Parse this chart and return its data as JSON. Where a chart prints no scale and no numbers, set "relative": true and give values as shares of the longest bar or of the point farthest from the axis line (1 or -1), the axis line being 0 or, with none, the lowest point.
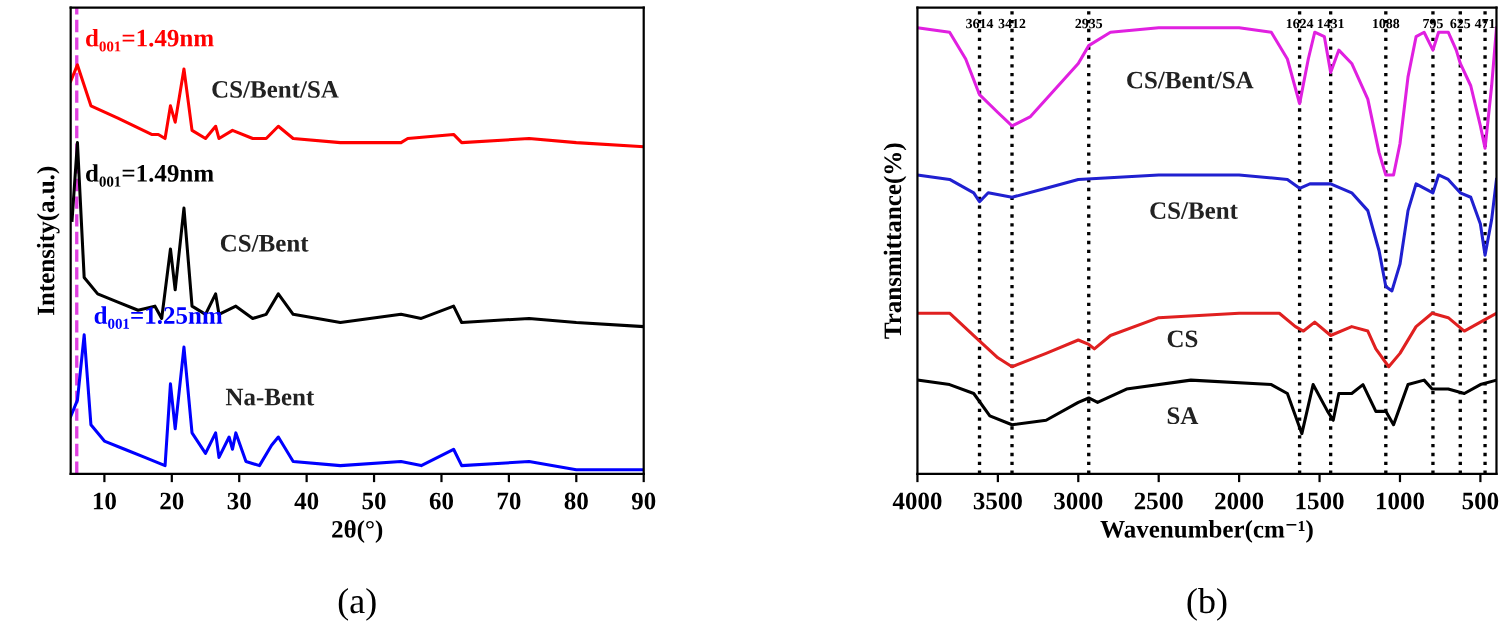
{
  "chart_data": [
    {
      "type": "line",
      "relative": true,
      "xlabel": "2θ(°)",
      "ylabel": "Intensity(a.u.)",
      "xlim": [
        5,
        90
      ],
      "xticks": [
        10,
        20,
        30,
        40,
        50,
        60,
        70,
        80,
        90
      ],
      "grid": false,
      "legend": false,
      "marker": "none",
      "line_style": "solid",
      "annotations": [
        "d₀₀₁=1.49nm",
        "d₀₀₁=1.49nm",
        "d₀₀₁=1.25nm",
        "(a)"
      ],
      "ref_lines": [
        {
          "axis": "x",
          "value": 5.9,
          "color": "#e040e0",
          "line_style": "dashed"
        }
      ],
      "series": [
        {
          "name": "CS/Bent/SA",
          "color": "#ff0000",
          "x": [
            5,
            6,
            8,
            12,
            17,
            18,
            19,
            19.8,
            20.5,
            21.8,
            23,
            25,
            26.5,
            27,
            29,
            32,
            34,
            35.8,
            38,
            45,
            54,
            55,
            61.8,
            63,
            73,
            80,
            90
          ],
          "values": [
            0.96,
            1.0,
            0.9,
            0.87,
            0.83,
            0.83,
            0.82,
            0.9,
            0.86,
            0.99,
            0.84,
            0.82,
            0.85,
            0.82,
            0.84,
            0.82,
            0.82,
            0.85,
            0.82,
            0.81,
            0.81,
            0.82,
            0.83,
            0.81,
            0.82,
            0.81,
            0.8
          ]
        },
        {
          "name": "CS/Bent",
          "color": "#000000",
          "x": [
            5.2,
            6,
            7,
            9,
            12,
            15,
            17.5,
            18.5,
            19.8,
            20.5,
            21.8,
            23,
            25,
            26.5,
            27,
            29.5,
            32,
            34,
            35.8,
            38,
            45,
            54,
            57,
            61.8,
            63,
            73,
            80,
            90
          ],
          "values": [
            0.62,
            0.81,
            0.48,
            0.44,
            0.42,
            0.4,
            0.41,
            0.38,
            0.55,
            0.45,
            0.65,
            0.41,
            0.39,
            0.44,
            0.39,
            0.41,
            0.38,
            0.39,
            0.44,
            0.39,
            0.37,
            0.39,
            0.38,
            0.41,
            0.37,
            0.38,
            0.37,
            0.36
          ]
        },
        {
          "name": "Na-Bent",
          "color": "#0000ff",
          "x": [
            5,
            6,
            7,
            8,
            10,
            13,
            16,
            19,
            19.8,
            20.5,
            21.8,
            23,
            25,
            26.5,
            27,
            28.5,
            29,
            29.5,
            31,
            33,
            34.8,
            35.8,
            38,
            45,
            54,
            57,
            61.8,
            63,
            73,
            80,
            90
          ],
          "values": [
            0.14,
            0.18,
            0.34,
            0.12,
            0.08,
            0.06,
            0.04,
            0.02,
            0.22,
            0.11,
            0.31,
            0.1,
            0.05,
            0.1,
            0.04,
            0.09,
            0.06,
            0.1,
            0.03,
            0.02,
            0.07,
            0.09,
            0.03,
            0.02,
            0.03,
            0.02,
            0.06,
            0.02,
            0.03,
            0.01,
            0.01
          ]
        }
      ]
    },
    {
      "type": "line",
      "relative": true,
      "xlabel": "Wavenumber(cm⁻¹)",
      "ylabel": "Transmittance(%)",
      "xlim": [
        4000,
        400
      ],
      "xticks": [
        4000,
        3500,
        3000,
        2500,
        2000,
        1500,
        1000,
        500
      ],
      "grid": false,
      "legend": false,
      "marker": "none",
      "line_style": "solid",
      "annotations": [
        "(b)"
      ],
      "ref_lines": [
        {
          "axis": "x",
          "value": 3614,
          "label": "3614",
          "color": "#000000",
          "line_style": "dotted"
        },
        {
          "axis": "x",
          "value": 3412,
          "label": "3412",
          "color": "#000000",
          "line_style": "dotted"
        },
        {
          "axis": "x",
          "value": 2935,
          "label": "2935",
          "color": "#000000",
          "line_style": "dotted"
        },
        {
          "axis": "x",
          "value": 1624,
          "label": "1624",
          "color": "#000000",
          "line_style": "dotted"
        },
        {
          "axis": "x",
          "value": 1431,
          "label": "1431",
          "color": "#000000",
          "line_style": "dotted"
        },
        {
          "axis": "x",
          "value": 1088,
          "label": "1088",
          "color": "#000000",
          "line_style": "dotted"
        },
        {
          "axis": "x",
          "value": 795,
          "label": "795",
          "color": "#000000",
          "line_style": "dotted"
        },
        {
          "axis": "x",
          "value": 625,
          "label": "625",
          "color": "#000000",
          "line_style": "dotted"
        },
        {
          "axis": "x",
          "value": 471,
          "label": "471",
          "color": "#000000",
          "line_style": "dotted"
        }
      ],
      "series": [
        {
          "name": "CS/Bent/SA",
          "color": "#e020e0",
          "x": [
            4000,
            3800,
            3700,
            3614,
            3500,
            3412,
            3300,
            3150,
            3000,
            2935,
            2800,
            2500,
            2000,
            1800,
            1700,
            1624,
            1570,
            1530,
            1470,
            1431,
            1380,
            1300,
            1200,
            1130,
            1088,
            1040,
            1000,
            950,
            900,
            850,
            795,
            760,
            700,
            650,
            625,
            560,
            500,
            471,
            430,
            400
          ],
          "values": [
            1.0,
            0.99,
            0.93,
            0.85,
            0.81,
            0.78,
            0.8,
            0.86,
            0.92,
            0.96,
            0.99,
            1.0,
            1.0,
            0.99,
            0.93,
            0.83,
            0.93,
            0.99,
            0.98,
            0.9,
            0.95,
            0.92,
            0.84,
            0.72,
            0.67,
            0.67,
            0.74,
            0.89,
            0.98,
            0.99,
            0.95,
            0.99,
            0.99,
            0.95,
            0.92,
            0.87,
            0.78,
            0.73,
            0.87,
            1.0
          ]
        },
        {
          "name": "CS/Bent",
          "color": "#2020d0",
          "x": [
            4000,
            3800,
            3650,
            3614,
            3560,
            3412,
            3200,
            3000,
            2500,
            2000,
            1700,
            1624,
            1560,
            1431,
            1300,
            1200,
            1130,
            1088,
            1050,
            1000,
            950,
            900,
            795,
            760,
            700,
            625,
            560,
            500,
            471,
            430,
            400
          ],
          "values": [
            0.67,
            0.66,
            0.63,
            0.61,
            0.63,
            0.62,
            0.64,
            0.66,
            0.67,
            0.67,
            0.66,
            0.64,
            0.65,
            0.65,
            0.63,
            0.59,
            0.5,
            0.42,
            0.41,
            0.47,
            0.59,
            0.65,
            0.63,
            0.67,
            0.66,
            0.63,
            0.62,
            0.56,
            0.49,
            0.57,
            0.66
          ]
        },
        {
          "name": "CS",
          "color": "#e02020",
          "x": [
            4000,
            3800,
            3650,
            3500,
            3412,
            3200,
            3000,
            2935,
            2900,
            2800,
            2500,
            2000,
            1750,
            1650,
            1600,
            1530,
            1431,
            1300,
            1200,
            1150,
            1070,
            1000,
            900,
            800,
            700,
            600,
            500,
            400
          ],
          "values": [
            0.36,
            0.36,
            0.31,
            0.26,
            0.24,
            0.27,
            0.3,
            0.29,
            0.28,
            0.31,
            0.35,
            0.36,
            0.36,
            0.33,
            0.32,
            0.34,
            0.31,
            0.33,
            0.32,
            0.28,
            0.24,
            0.27,
            0.33,
            0.36,
            0.35,
            0.32,
            0.34,
            0.36
          ]
        },
        {
          "name": "SA",
          "color": "#000000",
          "x": [
            4000,
            3800,
            3650,
            3550,
            3412,
            3200,
            3000,
            2935,
            2880,
            2700,
            2300,
            1800,
            1700,
            1610,
            1540,
            1450,
            1415,
            1380,
            1300,
            1230,
            1150,
            1088,
            1040,
            1000,
            950,
            850,
            800,
            700,
            600,
            500,
            400
          ],
          "values": [
            0.21,
            0.2,
            0.18,
            0.13,
            0.11,
            0.12,
            0.16,
            0.17,
            0.16,
            0.19,
            0.21,
            0.2,
            0.18,
            0.09,
            0.2,
            0.14,
            0.12,
            0.18,
            0.18,
            0.2,
            0.14,
            0.14,
            0.11,
            0.15,
            0.2,
            0.21,
            0.19,
            0.19,
            0.18,
            0.2,
            0.21
          ]
        }
      ]
    }
  ]
}
